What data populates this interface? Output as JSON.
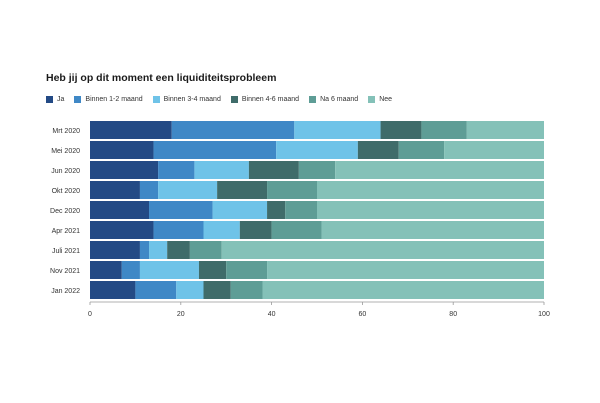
{
  "chart_data": {
    "type": "bar",
    "orientation": "horizontal",
    "stacked": true,
    "title": "Heb jij op dit moment een liquiditeitsprobleem",
    "categories": [
      "Mrt 2020",
      "Mei 2020",
      "Jun 2020",
      "Okt 2020",
      "Dec 2020",
      "Apr 2021",
      "Juli 2021",
      "Nov 2021",
      "Jan 2022"
    ],
    "series": [
      {
        "name": "Ja",
        "color": "#234a85",
        "values": [
          18,
          14,
          15,
          11,
          13,
          14,
          11,
          7,
          10
        ]
      },
      {
        "name": "Binnen 1-2 maand",
        "color": "#3f88c6",
        "values": [
          27,
          27,
          8,
          4,
          14,
          11,
          2,
          4,
          9
        ]
      },
      {
        "name": "Binnen 3-4 maand",
        "color": "#6fc3e8",
        "values": [
          19,
          18,
          12,
          13,
          12,
          8,
          4,
          13,
          6
        ]
      },
      {
        "name": "Binnen 4-6 maand",
        "color": "#3f6c6a",
        "values": [
          9,
          9,
          11,
          11,
          4,
          7,
          5,
          6,
          6
        ]
      },
      {
        "name": "Na 6 maand",
        "color": "#5e9d96",
        "values": [
          10,
          10,
          8,
          11,
          7,
          11,
          7,
          9,
          7
        ]
      },
      {
        "name": "Nee",
        "color": "#84c1b8",
        "values": [
          17,
          22,
          46,
          50,
          50,
          49,
          71,
          61,
          62
        ]
      }
    ],
    "xlim": [
      0,
      100
    ],
    "xticks": [
      0,
      20,
      40,
      60,
      80,
      100
    ],
    "legend_position": "top-left"
  }
}
